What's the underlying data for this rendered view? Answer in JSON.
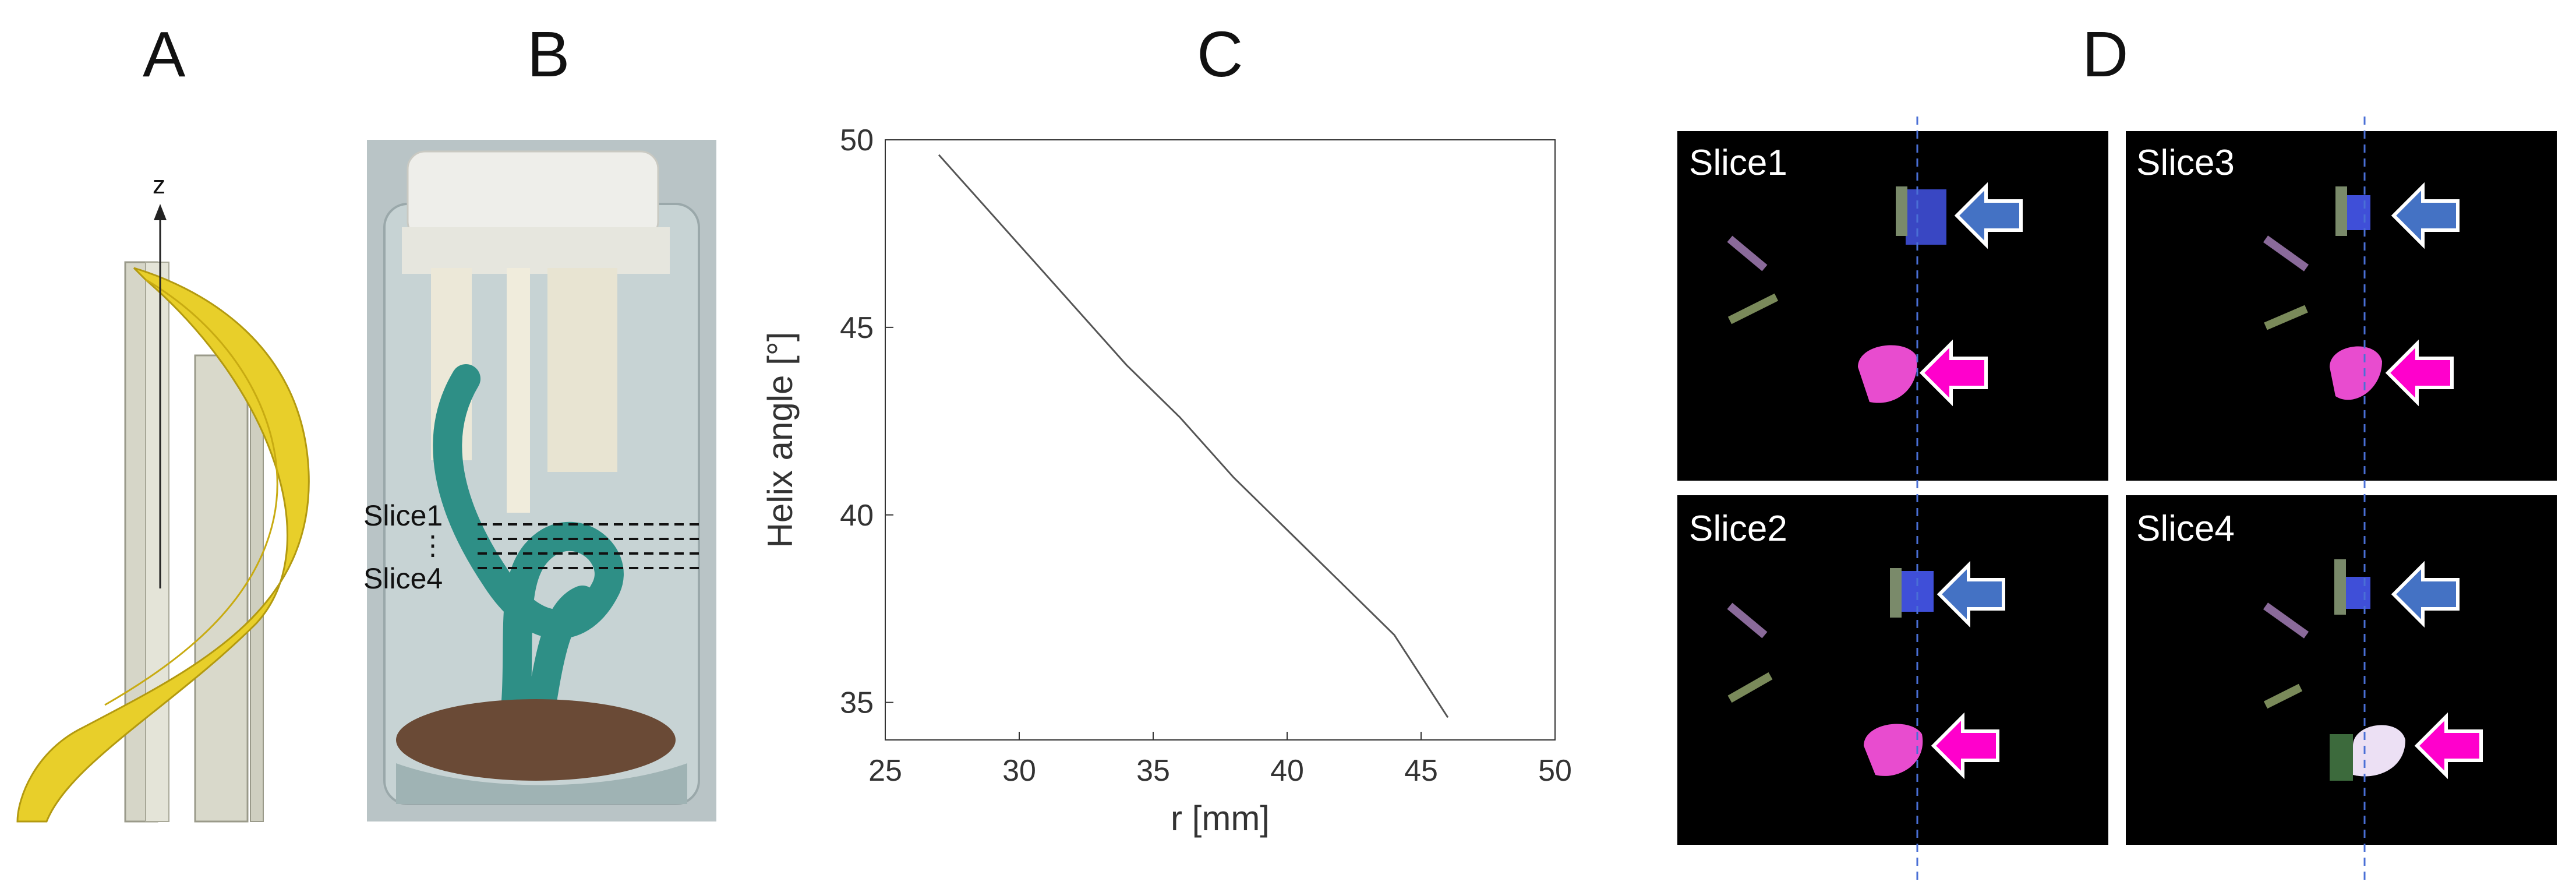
{
  "panels": {
    "a": {
      "letter": "A",
      "axis_label": "z"
    },
    "b": {
      "letter": "B",
      "slice_top": "Slice1",
      "slice_dots": "⋮",
      "slice_bottom": "Slice4"
    },
    "c": {
      "letter": "C"
    },
    "d": {
      "letter": "D",
      "slices": [
        "Slice1",
        "Slice3",
        "Slice2",
        "Slice4"
      ]
    }
  },
  "colors": {
    "ribbon_yellow": "#e8cf2a",
    "tube_gray": "#c8c8b8",
    "phantom_teal": "#2e8f86",
    "blue_arrow": "#4472c4",
    "magenta_arrow": "#ff00cc",
    "guide_dashed_blue": "#4a6fd6"
  },
  "chart_data": {
    "type": "line",
    "title": "",
    "xlabel": "r  [mm]",
    "ylabel": "Helix  angle  [°]",
    "xlim": [
      25,
      50
    ],
    "ylim": [
      34,
      50
    ],
    "xticks": [
      25,
      30,
      35,
      40,
      45,
      50
    ],
    "yticks": [
      35,
      40,
      45,
      50
    ],
    "grid": false,
    "series": [
      {
        "x": [
          27,
          28,
          30,
          32,
          34,
          36,
          38,
          40,
          42,
          44,
          46
        ],
        "y": [
          49.6,
          48.8,
          47.2,
          45.6,
          44.0,
          42.6,
          41.0,
          39.6,
          38.2,
          36.8,
          34.6
        ]
      }
    ]
  }
}
